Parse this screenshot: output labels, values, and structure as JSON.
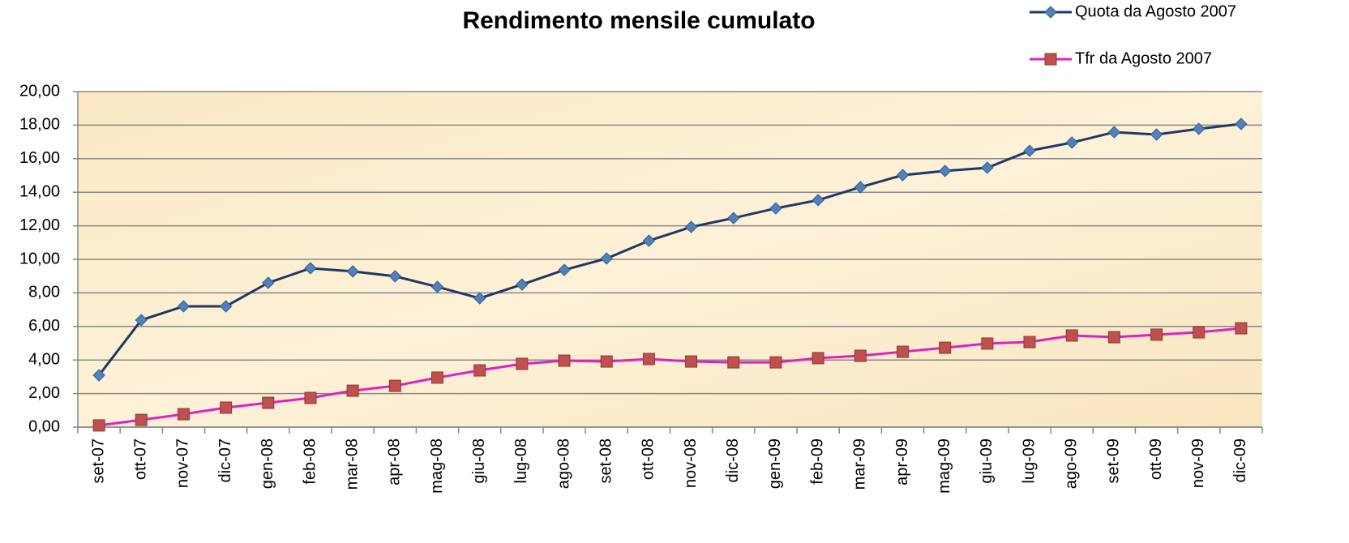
{
  "chart_data": {
    "type": "line",
    "title": "Rendimento mensile cumulato",
    "categories": [
      "set-07",
      "ott-07",
      "nov-07",
      "dic-07",
      "gen-08",
      "feb-08",
      "mar-08",
      "apr-08",
      "mag-08",
      "giu-08",
      "lug-08",
      "ago-08",
      "set-08",
      "ott-08",
      "nov-08",
      "dic-08",
      "gen-09",
      "feb-09",
      "mar-09",
      "apr-09",
      "mag-09",
      "giu-09",
      "lug-09",
      "ago-09",
      "set-09",
      "ott-09",
      "nov-09",
      "dic-09"
    ],
    "series": [
      {
        "name": "Quota da Agosto 2007",
        "color": "#1f3864",
        "marker_color": "#4f81bd",
        "marker": "diamond",
        "values": [
          3.09,
          6.38,
          7.2,
          7.2,
          8.6,
          9.47,
          9.28,
          8.99,
          8.36,
          7.68,
          8.5,
          9.37,
          10.05,
          11.11,
          11.93,
          12.46,
          13.04,
          13.53,
          14.3,
          15.02,
          15.27,
          15.46,
          16.47,
          16.96,
          17.58,
          17.44,
          17.78,
          18.07
        ]
      },
      {
        "name": "Tfr da Agosto 2007",
        "color": "#e020c0",
        "marker_color": "#c0504d",
        "marker": "square",
        "values": [
          0.1,
          0.43,
          0.77,
          1.16,
          1.45,
          1.74,
          2.17,
          2.46,
          2.95,
          3.38,
          3.77,
          3.96,
          3.91,
          4.06,
          3.91,
          3.86,
          3.86,
          4.11,
          4.25,
          4.49,
          4.73,
          4.98,
          5.07,
          5.46,
          5.36,
          5.51,
          5.65,
          5.89
        ]
      }
    ],
    "ylim": [
      0,
      20
    ],
    "yticks": [
      {
        "value": 0,
        "label": "0,00"
      },
      {
        "value": 2,
        "label": "2,00"
      },
      {
        "value": 4,
        "label": "4,00"
      },
      {
        "value": 6,
        "label": "6,00"
      },
      {
        "value": 8,
        "label": "8,00"
      },
      {
        "value": 10,
        "label": "10,00"
      },
      {
        "value": 12,
        "label": "12,00"
      },
      {
        "value": 14,
        "label": "14,00"
      },
      {
        "value": 16,
        "label": "16,00"
      },
      {
        "value": 18,
        "label": "18,00"
      },
      {
        "value": 20,
        "label": "20,00"
      }
    ],
    "grid": true,
    "legend": "top-right"
  }
}
